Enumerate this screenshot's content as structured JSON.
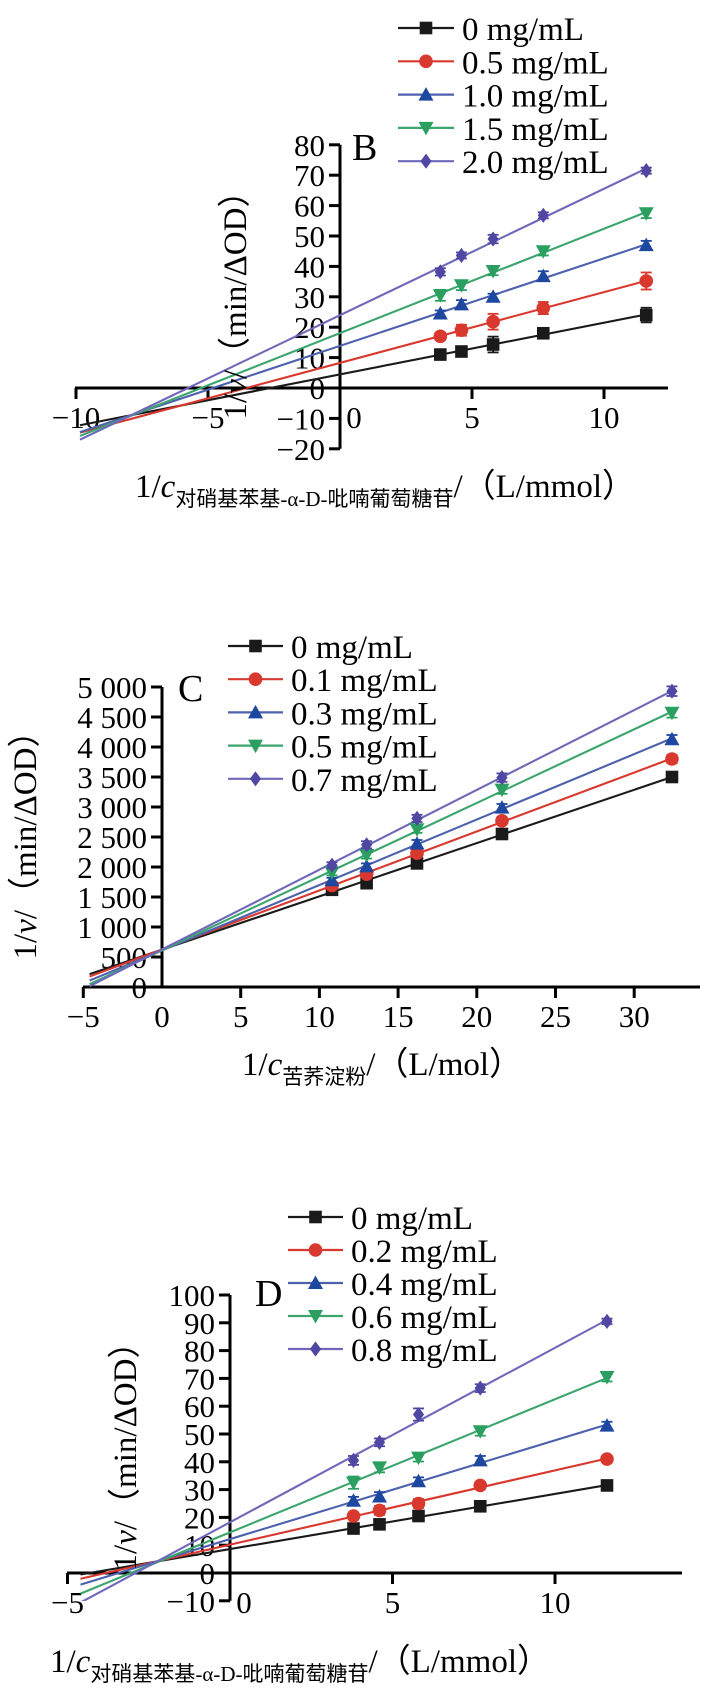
{
  "figure": {
    "background": "#ffffff",
    "description_labels": {
      "panel_b": "B",
      "panel_c": "C",
      "panel_d": "D"
    }
  },
  "chart_data": [
    {
      "id": "B",
      "type": "scatter",
      "panel_label": "B",
      "y_label": {
        "prefix": "1/",
        "var": "v",
        "suffix": "/（min/ΔOD）"
      },
      "x_label": {
        "prefix": "1/",
        "var": "c",
        "subscript": "对硝基苯基-α-D-吡喃葡萄糖苷",
        "suffix": "/（L/mmol）"
      },
      "x_range": [
        -10.05,
        12.45
      ],
      "y_range": [
        -20,
        80
      ],
      "x_ticks": {
        "values": [
          -10,
          -5,
          0,
          5,
          10
        ],
        "labels": [
          "−10",
          "−5",
          "0",
          "5",
          "10"
        ]
      },
      "y_ticks": {
        "values": [
          -20,
          -10,
          0,
          10,
          20,
          30,
          40,
          50,
          60,
          70,
          80
        ],
        "labels": [
          "−20",
          "−10",
          "0",
          "10",
          "20",
          "30",
          "40",
          "50",
          "60",
          "70",
          "80"
        ]
      },
      "line_x_start": -9.85,
      "legend_position": "top-right",
      "series": [
        {
          "name": "0 mg/mL",
          "marker": "square",
          "color": "#1a1a1a",
          "line_color": "#1a1a1a",
          "x": [
            3.8,
            4.6,
            5.8,
            7.7,
            11.6
          ],
          "y": [
            11,
            12,
            14.3,
            18,
            24
          ],
          "err": [
            1.2,
            1.0,
            2.6,
            1.4,
            2.4
          ]
        },
        {
          "name": "0.5 mg/mL",
          "marker": "circle",
          "color": "#d8382e",
          "line_color": "#d8382e",
          "x": [
            3.8,
            4.6,
            5.8,
            7.7,
            11.6
          ],
          "y": [
            17,
            19,
            21.8,
            26.3,
            35.2
          ],
          "err": [
            1.2,
            1.8,
            2.6,
            2.0,
            2.8
          ]
        },
        {
          "name": "1.0 mg/mL",
          "marker": "triangle-up",
          "color": "#1e47a0",
          "line_color": "#4d61ad",
          "x": [
            3.8,
            4.6,
            5.8,
            7.7,
            11.6
          ],
          "y": [
            24.5,
            27.5,
            30,
            36.8,
            47
          ],
          "err": [
            1.0,
            1.4,
            1.0,
            1.6,
            1.4
          ]
        },
        {
          "name": "1.5 mg/mL",
          "marker": "triangle-down",
          "color": "#2b9f60",
          "line_color": "#3ba56e",
          "x": [
            3.8,
            4.6,
            5.8,
            7.7,
            11.6
          ],
          "y": [
            30.5,
            33.8,
            38.5,
            45,
            57.5
          ],
          "err": [
            1.8,
            1.6,
            1.4,
            1.4,
            1.6
          ]
        },
        {
          "name": "2.0 mg/mL",
          "marker": "diamond",
          "color": "#5047a3",
          "line_color": "#6f68ba",
          "x": [
            3.8,
            4.6,
            5.8,
            7.7,
            11.6
          ],
          "y": [
            38.2,
            43.6,
            49,
            56.8,
            71.5
          ],
          "err": [
            1.2,
            1.0,
            1.4,
            1.0,
            1.0
          ]
        }
      ]
    },
    {
      "id": "C",
      "type": "scatter",
      "panel_label": "C",
      "y_label": {
        "prefix": "1/",
        "var": "v",
        "suffix": "/（min/ΔOD）"
      },
      "x_label": {
        "prefix": "1/",
        "var": "c",
        "subscript": "苦荞淀粉",
        "suffix": "/（L/mol）"
      },
      "x_range": [
        -5,
        34.2
      ],
      "y_range": [
        0,
        5000
      ],
      "x_ticks": {
        "values": [
          -5,
          0,
          5,
          10,
          15,
          20,
          25,
          30
        ],
        "labels": [
          "−5",
          "0",
          "5",
          "10",
          "15",
          "20",
          "25",
          "30"
        ]
      },
      "y_ticks": {
        "values": [
          0,
          500,
          1000,
          1500,
          2000,
          2500,
          3000,
          3500,
          4000,
          4500,
          5000
        ],
        "labels": [
          "0",
          "500",
          "1 000",
          "1 500",
          "2 000",
          "2 500",
          "3 000",
          "3 500",
          "4 000",
          "4 500",
          "5 000"
        ]
      },
      "line_x_start": -4.6,
      "legend_position": "top-center",
      "series": [
        {
          "name": "0 mg/mL",
          "marker": "square",
          "color": "#1a1a1a",
          "line_color": "#1a1a1a",
          "x": [
            10.8,
            13,
            16.2,
            21.6,
            32.4
          ],
          "y": [
            1620,
            1730,
            2060,
            2550,
            3500
          ],
          "err": [
            40,
            40,
            50,
            60,
            70
          ]
        },
        {
          "name": "0.1 mg/mL",
          "marker": "circle",
          "color": "#d8382e",
          "line_color": "#d8382e",
          "x": [
            10.8,
            13,
            16.2,
            21.6,
            32.4
          ],
          "y": [
            1690,
            1880,
            2230,
            2770,
            3800
          ],
          "err": [
            40,
            50,
            50,
            60,
            70
          ]
        },
        {
          "name": "0.3 mg/mL",
          "marker": "triangle-up",
          "color": "#1e47a0",
          "line_color": "#4d61ad",
          "x": [
            10.8,
            13,
            16.2,
            21.6,
            32.4
          ],
          "y": [
            1780,
            2010,
            2390,
            2990,
            4130
          ],
          "err": [
            40,
            50,
            60,
            60,
            70
          ]
        },
        {
          "name": "0.5 mg/mL",
          "marker": "triangle-down",
          "color": "#2b9f60",
          "line_color": "#3ba56e",
          "x": [
            10.8,
            13,
            16.2,
            21.6,
            32.4
          ],
          "y": [
            1910,
            2200,
            2630,
            3290,
            4570
          ],
          "err": [
            50,
            60,
            60,
            70,
            80
          ]
        },
        {
          "name": "0.7 mg/mL",
          "marker": "diamond",
          "color": "#5047a3",
          "line_color": "#6f68ba",
          "x": [
            10.8,
            13,
            16.2,
            21.6,
            32.4
          ],
          "y": [
            2030,
            2370,
            2810,
            3490,
            4930
          ],
          "err": [
            50,
            60,
            60,
            70,
            80
          ]
        }
      ]
    },
    {
      "id": "D",
      "type": "scatter",
      "panel_label": "D",
      "y_label": {
        "prefix": "1/",
        "var": "v",
        "suffix": "/（min/ΔOD）"
      },
      "x_label": {
        "prefix": "1/",
        "var": "c",
        "subscript": "对硝基苯基-α-D-吡喃葡萄糖苷",
        "suffix": "/（L/mmol）"
      },
      "x_range": [
        -5,
        13.9
      ],
      "y_range": [
        -10,
        100
      ],
      "x_ticks": {
        "values": [
          -5,
          0,
          5,
          10
        ],
        "labels": [
          "−5",
          "0",
          "5",
          "10"
        ]
      },
      "y_ticks": {
        "values": [
          -10,
          0,
          10,
          20,
          30,
          40,
          50,
          60,
          70,
          80,
          90,
          100
        ],
        "labels": [
          "−10",
          "0",
          "10",
          "20",
          "30",
          "40",
          "50",
          "60",
          "70",
          "80",
          "90",
          "100"
        ]
      },
      "line_x_start": -4.6,
      "legend_position": "top-center",
      "series": [
        {
          "name": "0 mg/mL",
          "marker": "square",
          "color": "#1a1a1a",
          "line_color": "#1a1a1a",
          "x": [
            3.8,
            4.6,
            5.8,
            7.7,
            11.6
          ],
          "y": [
            16,
            17.5,
            20.5,
            24,
            31.5
          ],
          "err": [
            1.6,
            1.8,
            1.6,
            1.4,
            1.4
          ]
        },
        {
          "name": "0.2 mg/mL",
          "marker": "circle",
          "color": "#d8382e",
          "line_color": "#d8382e",
          "x": [
            3.8,
            4.6,
            5.8,
            7.7,
            11.6
          ],
          "y": [
            20.5,
            22.5,
            25,
            31.5,
            41
          ],
          "err": [
            1.2,
            1.6,
            1.6,
            1.2,
            1.2
          ]
        },
        {
          "name": "0.4 mg/mL",
          "marker": "triangle-up",
          "color": "#1e47a0",
          "line_color": "#4d61ad",
          "x": [
            3.8,
            4.6,
            5.8,
            7.7,
            11.6
          ],
          "y": [
            26,
            27.5,
            33,
            40.5,
            53
          ],
          "err": [
            1.4,
            1.6,
            1.4,
            1.6,
            1.4
          ]
        },
        {
          "name": "0.6 mg/mL",
          "marker": "triangle-down",
          "color": "#2b9f60",
          "line_color": "#3ba56e",
          "x": [
            3.8,
            4.6,
            5.8,
            7.7,
            11.6
          ],
          "y": [
            32.5,
            38,
            41.5,
            51,
            70.5
          ],
          "err": [
            2.2,
            1.8,
            1.4,
            1.6,
            1.6
          ]
        },
        {
          "name": "0.8 mg/mL",
          "marker": "diamond",
          "color": "#5047a3",
          "line_color": "#6f68ba",
          "x": [
            3.8,
            4.6,
            5.8,
            7.7,
            11.6
          ],
          "y": [
            40.5,
            47,
            57,
            66.5,
            90.5
          ],
          "err": [
            1.6,
            1.4,
            2.2,
            1.4,
            1.0
          ]
        }
      ]
    }
  ]
}
